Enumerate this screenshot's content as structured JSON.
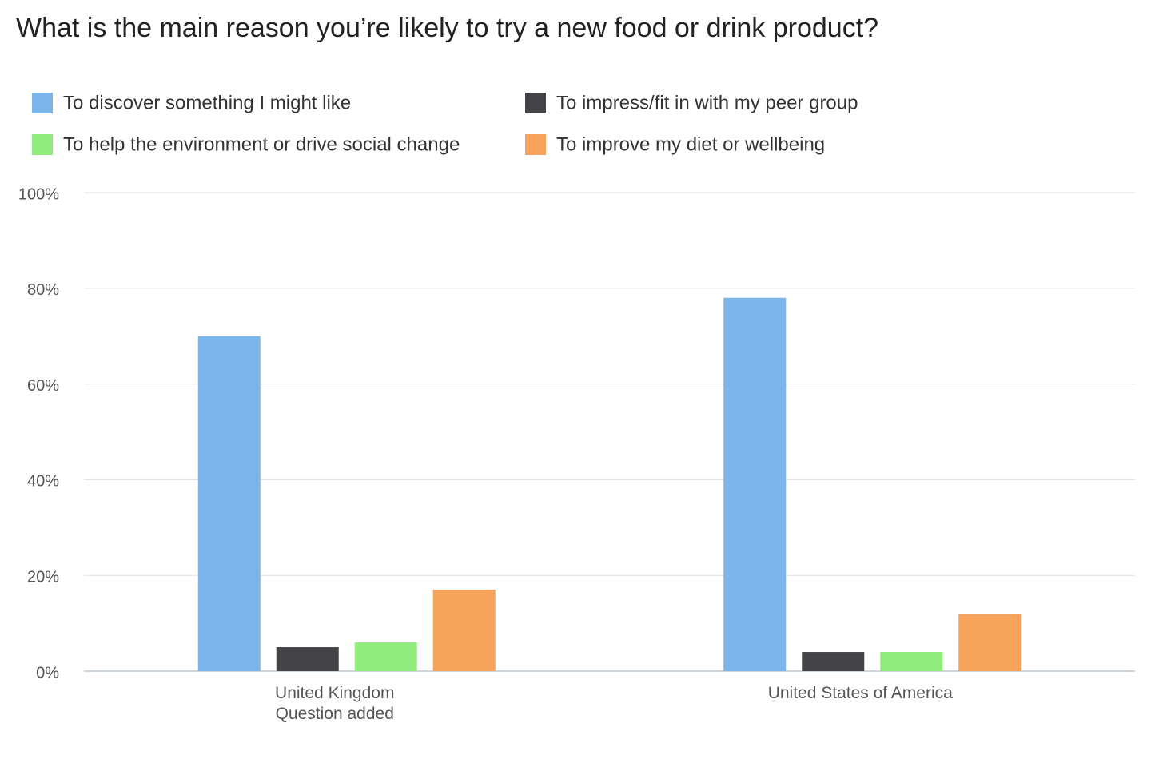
{
  "chart_data": {
    "type": "bar",
    "title": "What is the main reason you’re likely to try a new food or drink product?",
    "categories": [
      "United Kingdom\nQuestion added",
      "United States of America"
    ],
    "series": [
      {
        "name": "To discover something I might like",
        "color": "#7cb5ec",
        "values": [
          70,
          78
        ]
      },
      {
        "name": "To impress/fit in with my peer group",
        "color": "#434348",
        "values": [
          5,
          4
        ]
      },
      {
        "name": "To help the environment or drive social change",
        "color": "#90ed7d",
        "values": [
          6,
          4
        ]
      },
      {
        "name": "To improve my diet or wellbeing",
        "color": "#f7a35c",
        "values": [
          17,
          12
        ]
      }
    ],
    "ylim": [
      0,
      100
    ],
    "yticks": [
      {
        "value": 0,
        "label": "0%"
      },
      {
        "value": 20,
        "label": "20%"
      },
      {
        "value": 40,
        "label": "40%"
      },
      {
        "value": 60,
        "label": "60%"
      },
      {
        "value": 80,
        "label": "80%"
      },
      {
        "value": 100,
        "label": "100%"
      }
    ],
    "grid": true
  }
}
